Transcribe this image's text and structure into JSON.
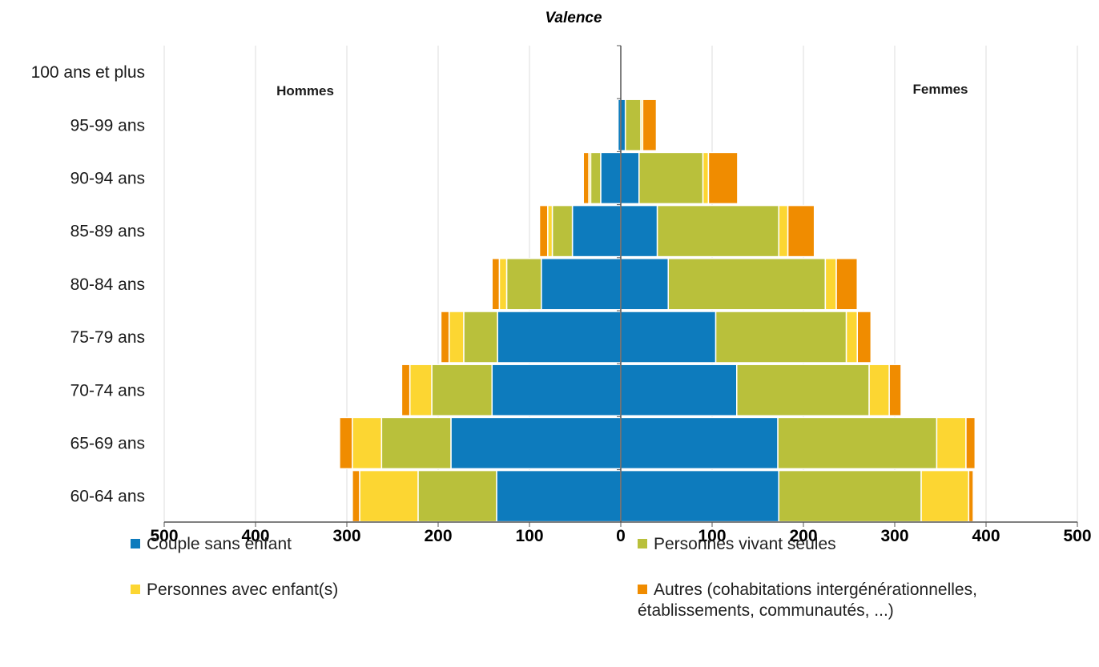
{
  "chart_data": {
    "type": "bar",
    "orientation": "horizontal",
    "layout": "population-pyramid",
    "title": "Valence",
    "left_label": "Hommes",
    "right_label": "Femmes",
    "categories": [
      "100 ans et plus",
      "95-99 ans",
      "90-94 ans",
      "85-89 ans",
      "80-84 ans",
      "75-79 ans",
      "70-74 ans",
      "65-69 ans",
      "60-64 ans"
    ],
    "x_ticks": [
      "500",
      "400",
      "300",
      "200",
      "100",
      "0",
      "100",
      "200",
      "300",
      "400",
      "500"
    ],
    "xlim": [
      -500,
      500
    ],
    "grid": true,
    "legend_position": "bottom",
    "series": [
      {
        "name": "Couple sans enfant",
        "color": "#0d7bbd",
        "hommes": [
          0,
          3,
          22,
          53,
          87,
          135,
          141,
          186,
          136
        ],
        "femmes": [
          0,
          5,
          20,
          40,
          52,
          104,
          127,
          172,
          173
        ]
      },
      {
        "name": "Personnes vivant seules",
        "color": "#b9c03b",
        "hommes": [
          0,
          0,
          11,
          22,
          38,
          37,
          66,
          76,
          86
        ],
        "femmes": [
          0,
          17,
          70,
          133,
          172,
          143,
          145,
          174,
          156
        ]
      },
      {
        "name": "Personnes avec enfant(s)",
        "color": "#fcd632",
        "hommes": [
          0,
          0,
          2,
          5,
          8,
          16,
          24,
          32,
          64
        ],
        "femmes": [
          0,
          2,
          6,
          10,
          12,
          12,
          22,
          32,
          52
        ]
      },
      {
        "name": "Autres (cohabitations intergénérationnelles, établissements, communautés, ...)",
        "color": "#f08c00",
        "hommes": [
          0,
          0,
          6,
          9,
          8,
          9,
          9,
          14,
          8
        ],
        "femmes": [
          0,
          15,
          32,
          29,
          23,
          15,
          13,
          10,
          5
        ]
      }
    ]
  }
}
